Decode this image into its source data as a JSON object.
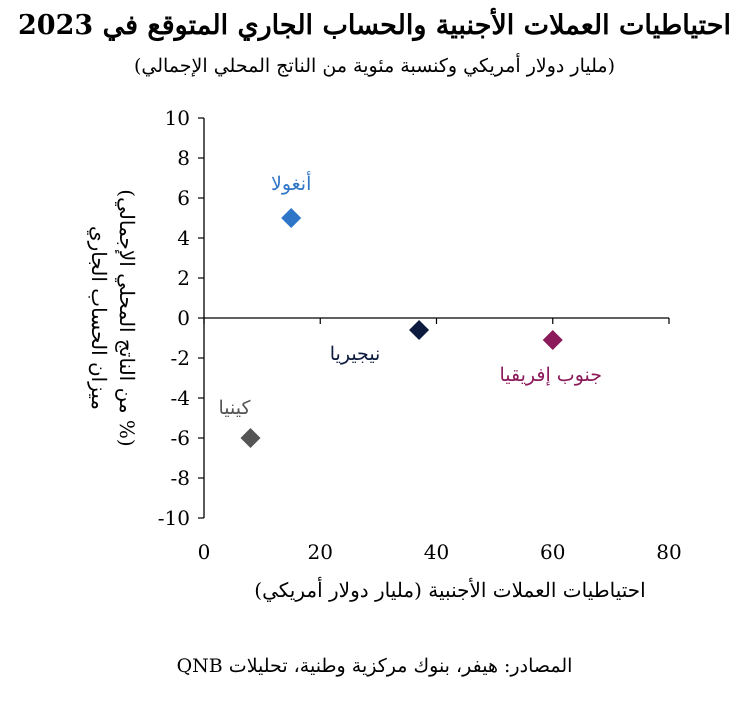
{
  "title": "احتياطيات العملات الأجنبية والحساب الجاري المتوقع في 2023",
  "subtitle": "(مليار دولار أمريكي وكنسبة مئوية من الناتج المحلي الإجمالي)",
  "source": "المصادر: هيفر، بنوك مركزية وطنية، تحليلات QNB",
  "chart_data": {
    "type": "scatter",
    "title": "احتياطيات العملات الأجنبية والحساب الجاري المتوقع في 2023",
    "subtitle": "(مليار دولار أمريكي وكنسبة مئوية من الناتج المحلي الإجمالي)",
    "xlabel": "احتياطيات العملات الأجنبية (مليار دولار أمريكي)",
    "ylabel_line1": "ميزان الحساب الجاري",
    "ylabel_line2": "(% من الناتج المحلي الإجمالي)",
    "xlim": [
      0,
      80
    ],
    "ylim": [
      -10,
      10
    ],
    "x_ticks": [
      "0",
      "20",
      "40",
      "60",
      "80"
    ],
    "y_ticks": [
      "10",
      "8",
      "6",
      "4",
      "2",
      "0",
      "-2",
      "-4",
      "-6",
      "-8",
      "-10"
    ],
    "grid": false,
    "points": [
      {
        "label": "أنغولا",
        "x": 15,
        "y": 5,
        "color": "#2e75c8"
      },
      {
        "label": "نيجيريا",
        "x": 37,
        "y": -0.6,
        "color": "#0d1b3e"
      },
      {
        "label": "جنوب إفريقيا",
        "x": 60,
        "y": -1.1,
        "color": "#8b1a5a"
      },
      {
        "label": "كينيا",
        "x": 8,
        "y": -6,
        "color": "#555555"
      }
    ]
  }
}
